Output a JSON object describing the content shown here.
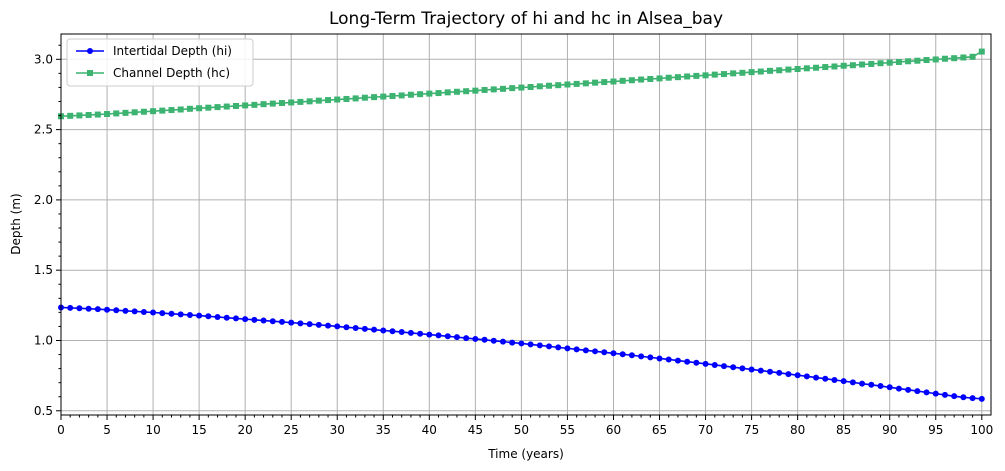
{
  "chart_data": {
    "type": "line",
    "title": "Long-Term Trajectory of hi and hc in Alsea_bay",
    "xlabel": "Time (years)",
    "ylabel": "Depth (m)",
    "xlim": [
      0,
      101
    ],
    "ylim": [
      0.47,
      3.18
    ],
    "x_ticks": [
      0,
      5,
      10,
      15,
      20,
      25,
      30,
      35,
      40,
      45,
      50,
      55,
      60,
      65,
      70,
      75,
      80,
      85,
      90,
      95,
      100
    ],
    "y_ticks": [
      0.5,
      1.0,
      1.5,
      2.0,
      2.5,
      3.0
    ],
    "x_tick_labels": [
      "0",
      "5",
      "10",
      "15",
      "20",
      "25",
      "30",
      "35",
      "40",
      "45",
      "50",
      "55",
      "60",
      "65",
      "70",
      "75",
      "80",
      "85",
      "90",
      "95",
      "100"
    ],
    "y_tick_labels": [
      "0.5",
      "1.0",
      "1.5",
      "2.0",
      "2.5",
      "3.0"
    ],
    "grid": true,
    "legend_position": "upper-left",
    "series": [
      {
        "name": "Intertidal Depth (hi)",
        "color": "#0000ff",
        "marker": "circle",
        "x_start": 0,
        "x_end": 100,
        "x_step": 1,
        "values": [
          1.235,
          1.232,
          1.229,
          1.226,
          1.223,
          1.219,
          1.215,
          1.211,
          1.207,
          1.203,
          1.199,
          1.195,
          1.19,
          1.186,
          1.181,
          1.177,
          1.172,
          1.167,
          1.162,
          1.157,
          1.152,
          1.147,
          1.142,
          1.137,
          1.132,
          1.127,
          1.122,
          1.116,
          1.111,
          1.106,
          1.1,
          1.094,
          1.089,
          1.083,
          1.077,
          1.071,
          1.066,
          1.06,
          1.054,
          1.048,
          1.042,
          1.036,
          1.03,
          1.024,
          1.017,
          1.011,
          1.005,
          0.998,
          0.992,
          0.985,
          0.979,
          0.972,
          0.965,
          0.958,
          0.951,
          0.944,
          0.937,
          0.93,
          0.923,
          0.916,
          0.909,
          0.902,
          0.895,
          0.887,
          0.88,
          0.872,
          0.865,
          0.857,
          0.849,
          0.842,
          0.834,
          0.826,
          0.818,
          0.81,
          0.802,
          0.794,
          0.786,
          0.778,
          0.77,
          0.761,
          0.753,
          0.745,
          0.736,
          0.728,
          0.719,
          0.711,
          0.702,
          0.693,
          0.685,
          0.676,
          0.667,
          0.658,
          0.649,
          0.64,
          0.631,
          0.622,
          0.613,
          0.604,
          0.596,
          0.59,
          0.585
        ]
      },
      {
        "name": "Channel Depth (hc)",
        "color": "#3cb371",
        "marker": "square",
        "x_start": 0,
        "x_end": 100,
        "x_step": 1,
        "values": [
          2.595,
          2.598,
          2.601,
          2.604,
          2.607,
          2.611,
          2.615,
          2.619,
          2.623,
          2.627,
          2.631,
          2.635,
          2.639,
          2.643,
          2.648,
          2.652,
          2.656,
          2.66,
          2.664,
          2.668,
          2.672,
          2.676,
          2.681,
          2.685,
          2.689,
          2.693,
          2.697,
          2.701,
          2.706,
          2.71,
          2.714,
          2.718,
          2.722,
          2.727,
          2.731,
          2.735,
          2.739,
          2.743,
          2.748,
          2.752,
          2.756,
          2.76,
          2.765,
          2.769,
          2.773,
          2.777,
          2.782,
          2.786,
          2.79,
          2.795,
          2.799,
          2.803,
          2.808,
          2.812,
          2.816,
          2.821,
          2.825,
          2.829,
          2.834,
          2.838,
          2.842,
          2.847,
          2.851,
          2.856,
          2.86,
          2.864,
          2.869,
          2.873,
          2.878,
          2.882,
          2.886,
          2.891,
          2.895,
          2.9,
          2.904,
          2.909,
          2.913,
          2.918,
          2.922,
          2.927,
          2.931,
          2.936,
          2.94,
          2.945,
          2.949,
          2.954,
          2.958,
          2.963,
          2.967,
          2.972,
          2.976,
          2.981,
          2.986,
          2.99,
          2.995,
          2.999,
          3.004,
          3.008,
          3.013,
          3.018,
          3.055
        ]
      }
    ]
  }
}
